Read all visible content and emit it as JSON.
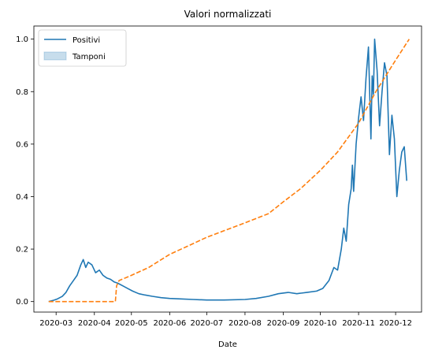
{
  "chart_data": {
    "type": "line",
    "title": "Valori normalizzati",
    "xlabel": "Date",
    "ylabel": "",
    "ylim": [
      -0.04,
      1.05
    ],
    "yticks": [
      0.0,
      0.2,
      0.4,
      0.6,
      0.8,
      1.0
    ],
    "ytick_labels": [
      "0.0",
      "0.2",
      "0.4",
      "0.6",
      "0.8",
      "1.0"
    ],
    "xlim": [
      "2020-02-12",
      "2020-12-22"
    ],
    "xticks": [
      "2020-03-01",
      "2020-04-01",
      "2020-05-01",
      "2020-06-01",
      "2020-07-01",
      "2020-08-01",
      "2020-09-01",
      "2020-10-01",
      "2020-11-01",
      "2020-12-01"
    ],
    "xtick_labels": [
      "2020-03",
      "2020-04",
      "2020-05",
      "2020-06",
      "2020-07",
      "2020-08",
      "2020-09",
      "2020-10",
      "2020-11",
      "2020-12"
    ],
    "legend": {
      "position": "upper-left",
      "entries": [
        {
          "label": "Positivi",
          "kind": "line",
          "color": "#1f77b4"
        },
        {
          "label": "Tamponi",
          "kind": "patch",
          "color": "#1f77b4"
        }
      ]
    },
    "series": [
      {
        "name": "Positivi",
        "color": "#1f77b4",
        "style": "solid",
        "points": [
          [
            "2020-02-24",
            0.0
          ],
          [
            "2020-02-28",
            0.005
          ],
          [
            "2020-03-02",
            0.01
          ],
          [
            "2020-03-06",
            0.02
          ],
          [
            "2020-03-09",
            0.035
          ],
          [
            "2020-03-12",
            0.06
          ],
          [
            "2020-03-15",
            0.08
          ],
          [
            "2020-03-18",
            0.1
          ],
          [
            "2020-03-21",
            0.14
          ],
          [
            "2020-03-23",
            0.16
          ],
          [
            "2020-03-25",
            0.13
          ],
          [
            "2020-03-27",
            0.15
          ],
          [
            "2020-03-30",
            0.14
          ],
          [
            "2020-04-02",
            0.11
          ],
          [
            "2020-04-05",
            0.12
          ],
          [
            "2020-04-08",
            0.1
          ],
          [
            "2020-04-11",
            0.09
          ],
          [
            "2020-04-14",
            0.085
          ],
          [
            "2020-04-17",
            0.075
          ],
          [
            "2020-04-20",
            0.07
          ],
          [
            "2020-04-24",
            0.06
          ],
          [
            "2020-04-28",
            0.05
          ],
          [
            "2020-05-02",
            0.04
          ],
          [
            "2020-05-07",
            0.03
          ],
          [
            "2020-05-12",
            0.025
          ],
          [
            "2020-05-18",
            0.02
          ],
          [
            "2020-05-25",
            0.015
          ],
          [
            "2020-06-01",
            0.012
          ],
          [
            "2020-06-10",
            0.01
          ],
          [
            "2020-06-20",
            0.008
          ],
          [
            "2020-07-01",
            0.006
          ],
          [
            "2020-07-15",
            0.006
          ],
          [
            "2020-08-01",
            0.008
          ],
          [
            "2020-08-10",
            0.012
          ],
          [
            "2020-08-20",
            0.02
          ],
          [
            "2020-08-28",
            0.03
          ],
          [
            "2020-09-05",
            0.035
          ],
          [
            "2020-09-12",
            0.03
          ],
          [
            "2020-09-20",
            0.035
          ],
          [
            "2020-09-28",
            0.04
          ],
          [
            "2020-10-03",
            0.05
          ],
          [
            "2020-10-08",
            0.08
          ],
          [
            "2020-10-12",
            0.13
          ],
          [
            "2020-10-15",
            0.12
          ],
          [
            "2020-10-18",
            0.2
          ],
          [
            "2020-10-20",
            0.28
          ],
          [
            "2020-10-22",
            0.23
          ],
          [
            "2020-10-24",
            0.37
          ],
          [
            "2020-10-26",
            0.43
          ],
          [
            "2020-10-27",
            0.52
          ],
          [
            "2020-10-28",
            0.42
          ],
          [
            "2020-10-30",
            0.6
          ],
          [
            "2020-11-01",
            0.7
          ],
          [
            "2020-11-03",
            0.78
          ],
          [
            "2020-11-05",
            0.69
          ],
          [
            "2020-11-07",
            0.85
          ],
          [
            "2020-11-09",
            0.97
          ],
          [
            "2020-11-11",
            0.62
          ],
          [
            "2020-11-12",
            0.86
          ],
          [
            "2020-11-13",
            0.79
          ],
          [
            "2020-11-14",
            1.0
          ],
          [
            "2020-11-16",
            0.88
          ],
          [
            "2020-11-18",
            0.67
          ],
          [
            "2020-11-20",
            0.8
          ],
          [
            "2020-11-22",
            0.91
          ],
          [
            "2020-11-24",
            0.86
          ],
          [
            "2020-11-26",
            0.56
          ],
          [
            "2020-11-28",
            0.71
          ],
          [
            "2020-11-30",
            0.62
          ],
          [
            "2020-12-02",
            0.4
          ],
          [
            "2020-12-04",
            0.5
          ],
          [
            "2020-12-06",
            0.57
          ],
          [
            "2020-12-08",
            0.59
          ],
          [
            "2020-12-10",
            0.46
          ]
        ]
      },
      {
        "name": "",
        "color": "#ff7f0e",
        "style": "dashed",
        "points": [
          [
            "2020-02-24",
            0.0
          ],
          [
            "2020-04-18",
            0.0
          ],
          [
            "2020-04-19",
            0.06
          ],
          [
            "2020-04-21",
            0.08
          ],
          [
            "2020-05-01",
            0.1
          ],
          [
            "2020-05-15",
            0.13
          ],
          [
            "2020-06-01",
            0.18
          ],
          [
            "2020-06-15",
            0.21
          ],
          [
            "2020-07-01",
            0.245
          ],
          [
            "2020-07-15",
            0.27
          ],
          [
            "2020-08-01",
            0.3
          ],
          [
            "2020-08-20",
            0.335
          ],
          [
            "2020-09-01",
            0.38
          ],
          [
            "2020-09-15",
            0.43
          ],
          [
            "2020-10-01",
            0.5
          ],
          [
            "2020-10-15",
            0.57
          ],
          [
            "2020-11-01",
            0.68
          ],
          [
            "2020-11-15",
            0.8
          ],
          [
            "2020-12-01",
            0.92
          ],
          [
            "2020-12-12",
            1.0
          ]
        ]
      }
    ]
  }
}
